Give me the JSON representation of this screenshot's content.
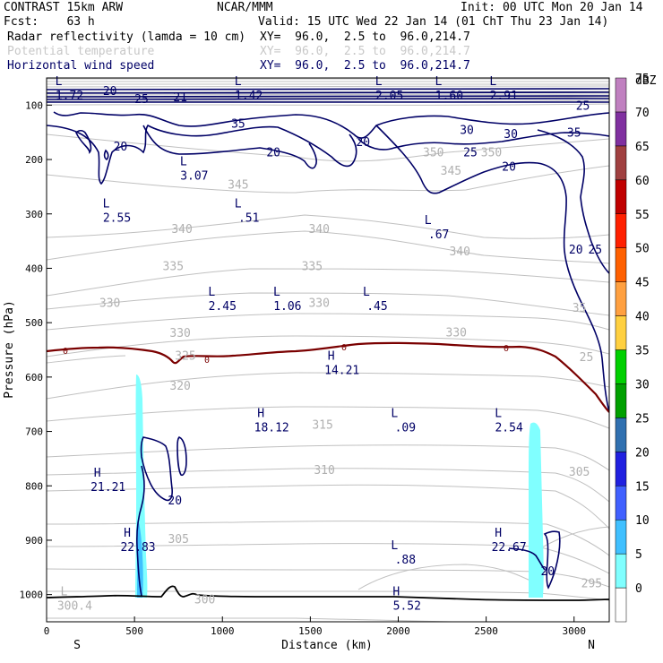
{
  "header": {
    "model": "CONTRAST 15km ARW",
    "org": "NCAR/MMM",
    "init": "Init: 00 UTC Mon 20 Jan 14",
    "fcst": "Fcst:    63 h",
    "valid": "Valid: 15 UTC Wed 22 Jan 14 (01 ChT Thu 23 Jan 14)",
    "fields": [
      {
        "name": "Radar reflectivity (lamda = 10 cm)",
        "xy": "XY=  96.0,  2.5 to  96.0,214.7"
      },
      {
        "name": "Potential temperature",
        "xy": "XY=  96.0,  2.5 to  96.0,214.7"
      },
      {
        "name": "Horizontal wind speed",
        "xy": "XY=  96.0,  2.5 to  96.0,214.7"
      }
    ]
  },
  "chart_data": {
    "type": "cross-section",
    "xlabel": "Distance (km)",
    "ylabel": "Pressure (hPa)",
    "xlim": [
      0,
      3200
    ],
    "ylim": [
      1050,
      50
    ],
    "x_ticks": [
      0,
      500,
      1000,
      1500,
      2000,
      2500,
      3000
    ],
    "y_ticks": [
      100,
      200,
      300,
      400,
      500,
      600,
      700,
      800,
      900,
      1000
    ],
    "x_end_labels": {
      "left": "S",
      "right": "N"
    },
    "colorbar": {
      "unit": "dBZ",
      "levels": [
        0,
        5,
        10,
        15,
        20,
        25,
        30,
        35,
        40,
        45,
        50,
        55,
        60,
        65,
        70,
        75
      ],
      "colors": [
        "#ffffff",
        "#80ffff",
        "#40c0ff",
        "#4060ff",
        "#2020e0",
        "#3070b0",
        "#00a000",
        "#00d000",
        "#ffd040",
        "#ffa040",
        "#ff6000",
        "#ff2000",
        "#c00000",
        "#a04040",
        "#8030a0",
        "#c080c0"
      ]
    },
    "theta_labels": [
      {
        "value": "345",
        "x": 1090,
        "p": 245
      },
      {
        "value": "345",
        "x": 2300,
        "p": 220
      },
      {
        "value": "350",
        "x": 2200,
        "p": 186
      },
      {
        "value": "350",
        "x": 2530,
        "p": 186
      },
      {
        "value": "340",
        "x": 770,
        "p": 327
      },
      {
        "value": "340",
        "x": 1550,
        "p": 327
      },
      {
        "value": "340",
        "x": 2350,
        "p": 368
      },
      {
        "value": "335",
        "x": 720,
        "p": 395
      },
      {
        "value": "335",
        "x": 1510,
        "p": 395
      },
      {
        "value": "330",
        "x": 360,
        "p": 463
      },
      {
        "value": "330",
        "x": 760,
        "p": 518
      },
      {
        "value": "330",
        "x": 1550,
        "p": 463
      },
      {
        "value": "330",
        "x": 2330,
        "p": 517
      },
      {
        "value": "325",
        "x": 790,
        "p": 560
      },
      {
        "value": "320",
        "x": 760,
        "p": 615
      },
      {
        "value": "315",
        "x": 1570,
        "p": 687
      },
      {
        "value": "310",
        "x": 1580,
        "p": 770
      },
      {
        "value": "305",
        "x": 750,
        "p": 897
      },
      {
        "value": "305",
        "x": 3030,
        "p": 773
      },
      {
        "value": "300",
        "x": 900,
        "p": 1008
      },
      {
        "value": "295",
        "x": 3100,
        "p": 978
      },
      {
        "value": "35",
        "x": 3030,
        "p": 472
      },
      {
        "value": "25",
        "x": 3070,
        "p": 562
      }
    ],
    "wind_labels": [
      {
        "value": "20",
        "x": 360,
        "p": 73
      },
      {
        "value": "25",
        "x": 540,
        "p": 88
      },
      {
        "value": "21",
        "x": 760,
        "p": 85
      },
      {
        "value": "35",
        "x": 1090,
        "p": 133
      },
      {
        "value": "20",
        "x": 1290,
        "p": 186
      },
      {
        "value": "20",
        "x": 1800,
        "p": 167
      },
      {
        "value": "30",
        "x": 2390,
        "p": 145
      },
      {
        "value": "25",
        "x": 2410,
        "p": 186
      },
      {
        "value": "20",
        "x": 2630,
        "p": 212
      },
      {
        "value": "30",
        "x": 2640,
        "p": 152
      },
      {
        "value": "35",
        "x": 3000,
        "p": 150
      },
      {
        "value": "25",
        "x": 3050,
        "p": 100
      },
      {
        "value": "20",
        "x": 3010,
        "p": 365
      },
      {
        "value": "25",
        "x": 3120,
        "p": 365
      },
      {
        "value": "20",
        "x": 420,
        "p": 175
      },
      {
        "value": "20",
        "x": 730,
        "p": 826
      },
      {
        "value": "20",
        "x": 2850,
        "p": 956
      }
    ],
    "extrema": [
      {
        "type": "L",
        "value": "1.72",
        "x": 130,
        "p": 70
      },
      {
        "type": "L",
        "value": "1.42",
        "x": 1150,
        "p": 70
      },
      {
        "type": "L",
        "value": "2.05",
        "x": 1950,
        "p": 70
      },
      {
        "type": "L",
        "value": "1.60",
        "x": 2290,
        "p": 70
      },
      {
        "type": "L",
        "value": "2.91",
        "x": 2600,
        "p": 70
      },
      {
        "type": "L",
        "value": "3.07",
        "x": 840,
        "p": 217
      },
      {
        "type": "L",
        "value": "2.55",
        "x": 400,
        "p": 295
      },
      {
        "type": "L",
        "value": ".51",
        "x": 1150,
        "p": 295
      },
      {
        "type": "L",
        "value": ".67",
        "x": 2230,
        "p": 325
      },
      {
        "type": "L",
        "value": "2.45",
        "x": 1000,
        "p": 457
      },
      {
        "type": "L",
        "value": "1.06",
        "x": 1370,
        "p": 457
      },
      {
        "type": "L",
        "value": ".45",
        "x": 1880,
        "p": 457
      },
      {
        "type": "H",
        "value": "14.21",
        "x": 1680,
        "p": 575
      },
      {
        "type": "H",
        "value": "18.12",
        "x": 1280,
        "p": 680
      },
      {
        "type": "L",
        "value": ".09",
        "x": 2040,
        "p": 680
      },
      {
        "type": "L",
        "value": "2.54",
        "x": 2630,
        "p": 680
      },
      {
        "type": "H",
        "value": "21.21",
        "x": 350,
        "p": 790
      },
      {
        "type": "H",
        "value": "22.83",
        "x": 520,
        "p": 900
      },
      {
        "type": "H",
        "value": "22.67",
        "x": 2630,
        "p": 900
      },
      {
        "type": "L",
        "value": ".88",
        "x": 2040,
        "p": 923
      },
      {
        "type": "L",
        "value": "300.4",
        "x": 160,
        "p": 1008
      },
      {
        "type": "H",
        "value": "5.52",
        "x": 2050,
        "p": 1008
      }
    ],
    "freezing_level_label": "0"
  }
}
